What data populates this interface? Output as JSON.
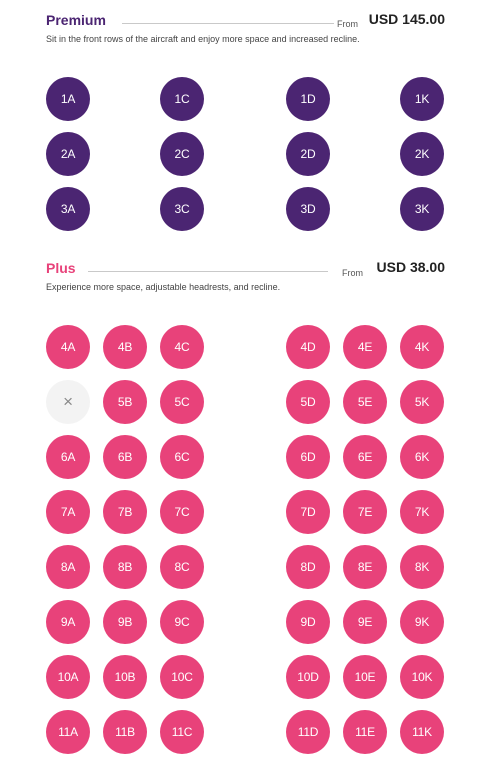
{
  "premium": {
    "title": "Premium",
    "from_label": "From",
    "price": "USD 145.00",
    "description": "Sit in the front rows of the aircraft and enjoy more space and increased recline.",
    "color": "#4b2572",
    "columns": [
      "A",
      "C",
      "D",
      "K"
    ],
    "rows": [
      [
        "1A",
        "1C",
        "1D",
        "1K"
      ],
      [
        "2A",
        "2C",
        "2D",
        "2K"
      ],
      [
        "3A",
        "3C",
        "3D",
        "3K"
      ]
    ]
  },
  "plus": {
    "title": "Plus",
    "from_label": "From",
    "price": "USD 38.00",
    "description": "Experience more space, adjustable headrests, and recline.",
    "color": "#e8427a",
    "columns": [
      "A",
      "B",
      "C",
      "D",
      "E",
      "K"
    ],
    "unavailable_symbol": "×",
    "rows": [
      [
        "4A",
        "4B",
        "4C",
        "4D",
        "4E",
        "4K"
      ],
      [
        null,
        "5B",
        "5C",
        "5D",
        "5E",
        "5K"
      ],
      [
        "6A",
        "6B",
        "6C",
        "6D",
        "6E",
        "6K"
      ],
      [
        "7A",
        "7B",
        "7C",
        "7D",
        "7E",
        "7K"
      ],
      [
        "8A",
        "8B",
        "8C",
        "8D",
        "8E",
        "8K"
      ],
      [
        "9A",
        "9B",
        "9C",
        "9D",
        "9E",
        "9K"
      ],
      [
        "10A",
        "10B",
        "10C",
        "10D",
        "10E",
        "10K"
      ],
      [
        "11A",
        "11B",
        "11C",
        "11D",
        "11E",
        "11K"
      ]
    ]
  }
}
